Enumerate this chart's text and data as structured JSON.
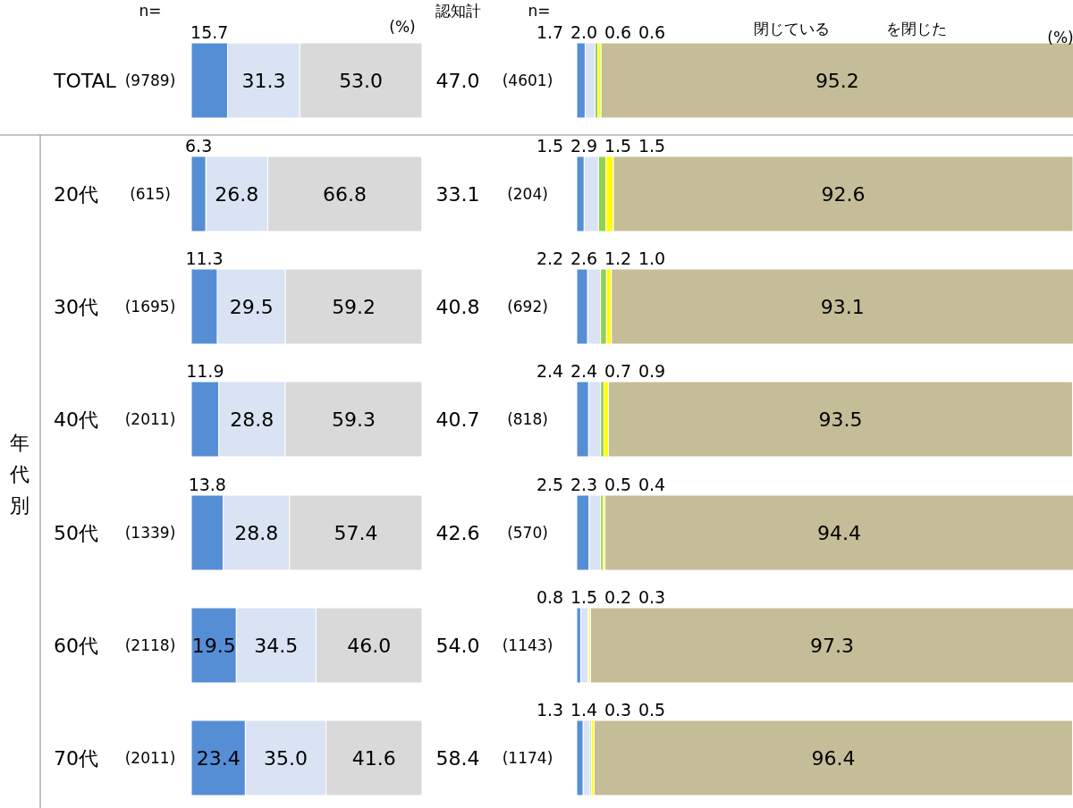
{
  "chart_data": [
    {
      "type": "bar",
      "orientation": "horizontal",
      "stacked": true,
      "tick_labels": "y",
      "categories": [
        "TOTAL",
        "20代",
        "30代",
        "40代",
        "50代",
        "60代",
        "70代"
      ],
      "xlim": [
        0,
        100
      ],
      "series": [
        {
          "color": "#558ed5",
          "values": [
            15.7,
            6.3,
            11.3,
            11.9,
            13.8,
            19.5,
            23.4
          ],
          "value_labels": [
            "15.7",
            "6.3",
            "11.3",
            "11.9",
            "13.8",
            "19.5",
            "23.4"
          ]
        },
        {
          "color": "#dae3f3",
          "values": [
            31.3,
            26.8,
            29.5,
            28.8,
            28.8,
            34.5,
            35.0
          ],
          "value_labels": [
            "31.3",
            "26.8",
            "29.5",
            "28.8",
            "28.8",
            "34.5",
            "35.0"
          ]
        },
        {
          "color": "#d9d9d9",
          "values": [
            53.0,
            66.8,
            59.2,
            59.3,
            57.4,
            46.0,
            41.6
          ],
          "value_labels": [
            "53.0",
            "66.8",
            "59.2",
            "59.3",
            "57.4",
            "46.0",
            "41.6"
          ]
        }
      ],
      "annotations": [
        "(9789)",
        "(615)",
        "(1695)",
        "(2011)",
        "(1339)",
        "(2118)",
        "(2011)",
        "47.0",
        "33.1",
        "40.8",
        "40.7",
        "42.6",
        "54.0",
        "58.4",
        "n=",
        "認知計",
        "(%)",
        "年代別"
      ]
    },
    {
      "type": "bar",
      "orientation": "horizontal",
      "stacked": true,
      "tick_labels": false,
      "categories": [
        null,
        null,
        null,
        null,
        null,
        null,
        null
      ],
      "xlim": [
        0,
        100
      ],
      "series": [
        {
          "color": "#558ed5",
          "values": [
            1.7,
            1.5,
            2.2,
            2.4,
            2.5,
            0.8,
            1.3
          ],
          "value_labels": [
            "1.7",
            "1.5",
            "2.2",
            "2.4",
            "2.5",
            "0.8",
            "1.3"
          ]
        },
        {
          "color": "#dae3f3",
          "values": [
            2.0,
            2.9,
            2.6,
            2.4,
            2.3,
            1.5,
            1.4
          ],
          "value_labels": [
            "2.0",
            "2.9",
            "2.6",
            "2.4",
            "2.3",
            "1.5",
            "1.4"
          ]
        },
        {
          "color": "#92d050",
          "values": [
            0.6,
            1.5,
            1.2,
            0.7,
            0.5,
            0.2,
            0.3
          ],
          "value_labels": [
            "0.6",
            "1.5",
            "1.2",
            "0.7",
            "0.5",
            "0.2",
            "0.3"
          ]
        },
        {
          "color": "#ffff00",
          "values": [
            0.6,
            1.5,
            1.0,
            0.9,
            0.4,
            0.3,
            0.5
          ],
          "value_labels": [
            "0.6",
            "1.5",
            "1.0",
            "0.9",
            "0.4",
            "0.3",
            "0.5"
          ]
        },
        {
          "color": "#c4bd97",
          "values": [
            95.2,
            92.6,
            93.1,
            93.5,
            94.4,
            97.3,
            96.4
          ],
          "value_labels": [
            "95.2",
            "92.6",
            "93.1",
            "93.5",
            "94.4",
            "97.3",
            "96.4"
          ]
        }
      ],
      "annotations": [
        "(4601)",
        "(204)",
        "(692)",
        "(818)",
        "(570)",
        "(1143)",
        "(1174)",
        "n=",
        "(%)",
        "閉じている",
        "を閉じた"
      ]
    }
  ]
}
